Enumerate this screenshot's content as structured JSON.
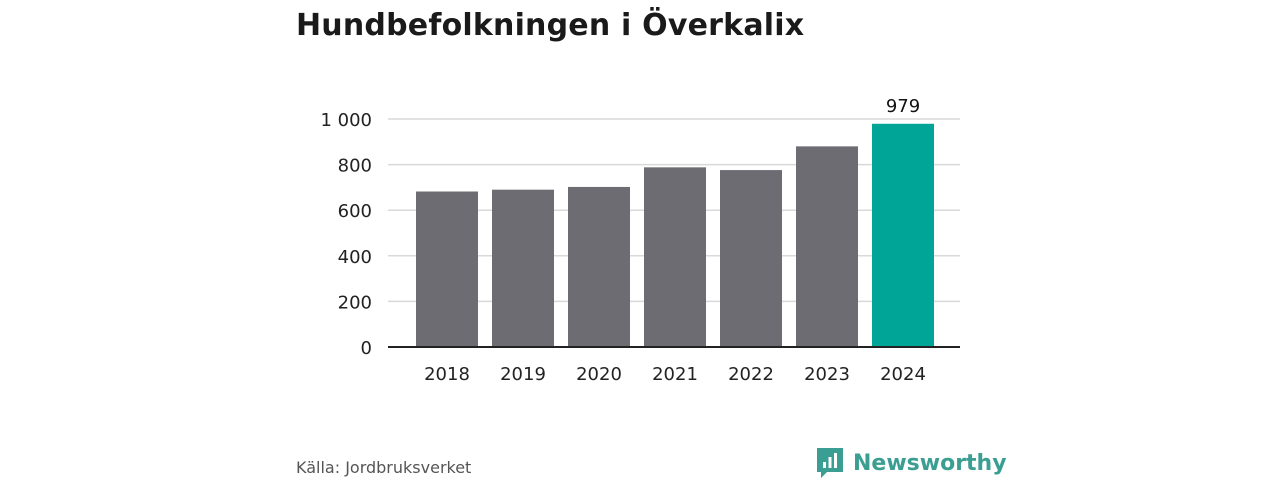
{
  "chart_data": {
    "type": "bar",
    "title": "Hundbefolkningen i Överkalix",
    "categories": [
      "2018",
      "2019",
      "2020",
      "2021",
      "2022",
      "2023",
      "2024"
    ],
    "values": [
      682,
      690,
      702,
      788,
      776,
      880,
      979
    ],
    "highlight_index": 6,
    "highlight_label": "979",
    "ylim": [
      0,
      1000
    ],
    "yticks": [
      0,
      200,
      400,
      600,
      800,
      1000
    ],
    "ytick_labels": [
      "0",
      "200",
      "400",
      "600",
      "800",
      "1 000"
    ],
    "grid": true,
    "colors": {
      "bar": "#6d6c72",
      "highlight": "#00a598",
      "grid": "#d9d9d9",
      "axis": "#222222"
    }
  },
  "footer": {
    "source": "Källa: Jordbruksverket",
    "brand": "Newsworthy",
    "brand_icon": "newsworthy-logo-icon"
  }
}
